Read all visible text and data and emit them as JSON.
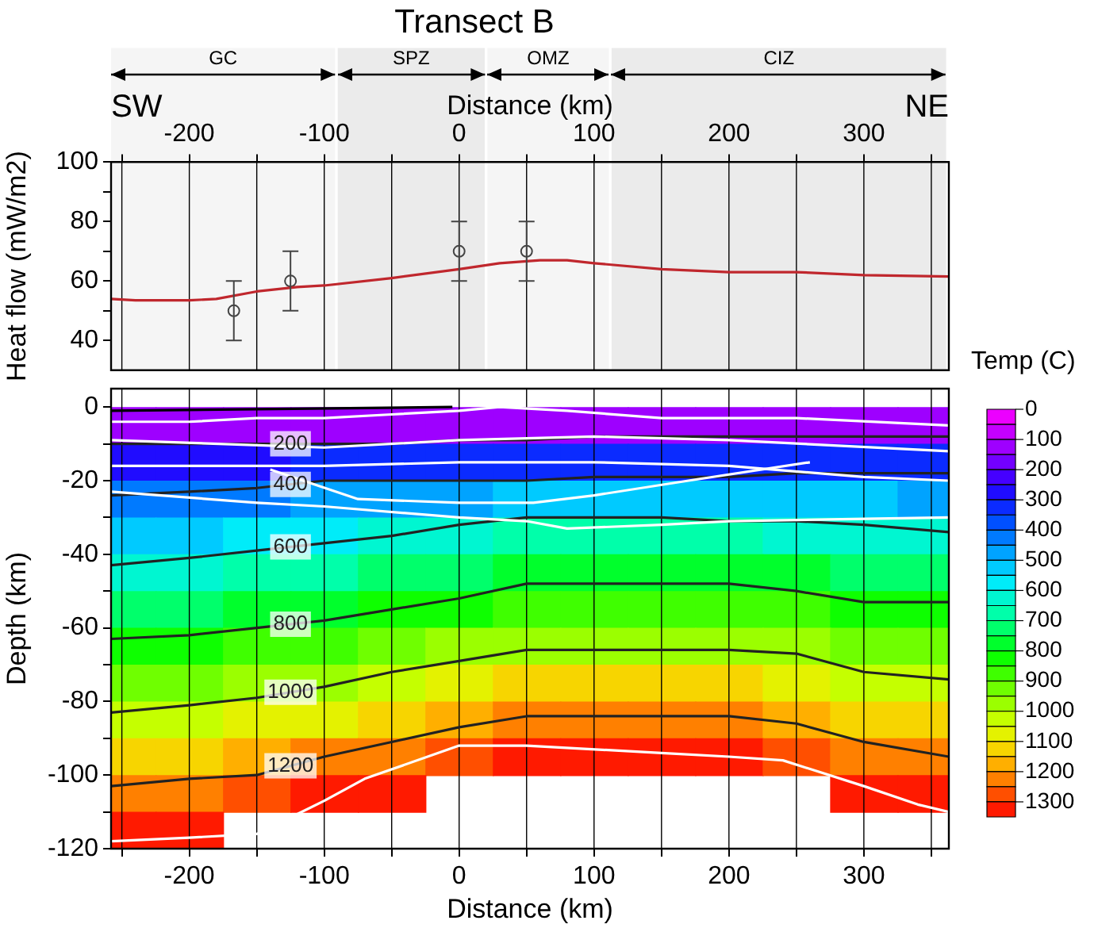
{
  "chart_data": [
    {
      "type": "line",
      "title": "Transect B",
      "xlabel": "Distance (km)",
      "ylabel": "Heat flow (mW/m2)",
      "xlim": [
        -258,
        363
      ],
      "xticks": [
        {
          "value": -250,
          "label": null
        },
        -200,
        {
          "value": -150,
          "label": null
        },
        -100,
        {
          "value": -50,
          "label": null
        },
        0,
        {
          "value": 50,
          "label": null
        },
        100,
        {
          "value": 150,
          "label": null
        },
        200,
        {
          "value": 250,
          "label": null
        },
        300,
        {
          "value": 350,
          "label": null
        }
      ],
      "ylim": [
        30,
        100
      ],
      "yticks": [
        40,
        {
          "value": 50,
          "label": null
        },
        60,
        {
          "value": 70,
          "label": null
        },
        80,
        {
          "value": 90,
          "label": null
        },
        100
      ],
      "grid": "x",
      "legend": false,
      "annotations": [
        "SW",
        "NE"
      ],
      "bands": [
        {
          "axis": "x",
          "from": -258,
          "to": -92,
          "label": "GC",
          "color": "#f5f5f5"
        },
        {
          "axis": "x",
          "from": -90,
          "to": 19,
          "label": "SPZ",
          "color": "#ebebeb"
        },
        {
          "axis": "x",
          "from": 21,
          "to": 111,
          "label": "OMZ",
          "color": "#f5f5f5"
        },
        {
          "axis": "x",
          "from": 113,
          "to": 361,
          "label": "CIZ",
          "color": "#ebebeb"
        }
      ],
      "series": [
        {
          "type": "line",
          "color": "#c0272d",
          "x": [
            -258,
            -240,
            -200,
            -180,
            -150,
            -120,
            -100,
            -50,
            0,
            30,
            60,
            80,
            100,
            150,
            200,
            250,
            300,
            363
          ],
          "values": [
            54,
            53.5,
            53.5,
            54,
            56.5,
            58,
            58.5,
            61,
            64,
            66,
            67,
            67,
            66,
            64,
            63,
            63,
            62,
            61.5
          ]
        },
        {
          "type": "scatter",
          "color": "#444444",
          "marker": "circle",
          "x": [
            -167,
            -125,
            0,
            50
          ],
          "values": [
            50,
            60,
            70,
            70
          ],
          "errors": [
            10,
            10,
            10,
            10
          ]
        }
      ]
    },
    {
      "type": "heatmap",
      "xlabel": "Distance (km)",
      "ylabel": "Depth (km)",
      "xlim": [
        -258,
        363
      ],
      "xticks": [
        {
          "value": -250,
          "label": null
        },
        -200,
        {
          "value": -150,
          "label": null
        },
        -100,
        {
          "value": -50,
          "label": null
        },
        0,
        {
          "value": 50,
          "label": null
        },
        100,
        {
          "value": 150,
          "label": null
        },
        200,
        {
          "value": 250,
          "label": null
        },
        300,
        {
          "value": 350,
          "label": null
        }
      ],
      "ylim": [
        -120,
        5
      ],
      "yticks": [
        -120,
        {
          "value": -110,
          "label": null
        },
        -100,
        {
          "value": -90,
          "label": null
        },
        -80,
        {
          "value": -70,
          "label": null
        },
        -60,
        {
          "value": -50,
          "label": null
        },
        -40,
        {
          "value": -30,
          "label": null
        },
        -20,
        {
          "value": -10,
          "label": null
        },
        0
      ],
      "grid": "x",
      "legend": false,
      "clabel": "Temp (C)",
      "clim": [
        0,
        1350
      ],
      "cticks": [
        0,
        100,
        200,
        300,
        400,
        500,
        600,
        700,
        800,
        900,
        1000,
        1100,
        1200,
        1300
      ],
      "x": [
        -250,
        -200,
        -150,
        -100,
        -50,
        0,
        50,
        100,
        150,
        200,
        250,
        300,
        350
      ],
      "y": [
        -5,
        -15,
        -25,
        -35,
        -45,
        -55,
        -65,
        -75,
        -85,
        -95,
        -105,
        -115
      ],
      "cells": [
        [
          100,
          100,
          100,
          100,
          100,
          110,
          110,
          130,
          130,
          130,
          130,
          130,
          130
        ],
        [
          270,
          280,
          280,
          300,
          300,
          310,
          310,
          330,
          330,
          330,
          340,
          340,
          340
        ],
        [
          410,
          420,
          440,
          460,
          470,
          480,
          500,
          510,
          510,
          500,
          510,
          500,
          490
        ],
        [
          520,
          530,
          550,
          580,
          600,
          630,
          660,
          660,
          660,
          650,
          640,
          630,
          610
        ],
        [
          620,
          640,
          660,
          680,
          700,
          730,
          770,
          770,
          770,
          760,
          750,
          720,
          720
        ],
        [
          720,
          730,
          750,
          770,
          800,
          840,
          880,
          880,
          880,
          880,
          860,
          820,
          820
        ],
        [
          820,
          830,
          850,
          880,
          920,
          950,
          990,
          990,
          990,
          990,
          980,
          930,
          910
        ],
        [
          920,
          940,
          960,
          990,
          1030,
          1070,
          1100,
          1100,
          1100,
          1100,
          1080,
          1030,
          1010
        ],
        [
          1020,
          1040,
          1060,
          1090,
          1140,
          1180,
          1210,
          1210,
          1210,
          1210,
          1190,
          1140,
          1100
        ],
        [
          1120,
          1140,
          1150,
          1200,
          1240,
          1280,
          1310,
          1310,
          1310,
          1310,
          1290,
          1240,
          1200
        ],
        [
          1220,
          1240,
          1250,
          1300,
          1340,
          null,
          null,
          null,
          null,
          null,
          null,
          1340,
          1300
        ],
        [
          1320,
          1340,
          null,
          null,
          null,
          null,
          null,
          null,
          null,
          null,
          null,
          null,
          null
        ]
      ],
      "series": [
        {
          "type": "line",
          "color": "#ffffff",
          "x": [
            -258,
            -200,
            -150,
            -100,
            -50,
            0,
            30,
            80,
            150,
            250,
            363
          ],
          "values": [
            -4,
            -4,
            -3,
            -3,
            -2,
            -1,
            0,
            -1,
            -3,
            -3,
            -5
          ]
        },
        {
          "type": "line",
          "color": "#ffffff",
          "x": [
            -258,
            -100,
            0,
            100,
            200,
            363
          ],
          "values": [
            -9,
            -11,
            -9,
            -8,
            -9,
            -12
          ]
        },
        {
          "type": "line",
          "color": "#ffffff",
          "x": [
            -258,
            -100,
            0,
            100,
            200,
            300,
            363
          ],
          "values": [
            -16,
            -16,
            -15,
            -15,
            -16,
            -19,
            -20
          ]
        },
        {
          "type": "line",
          "color": "#ffffff",
          "x": [
            -140,
            -75,
            0,
            55,
            100,
            170,
            260
          ],
          "values": [
            -17,
            -25,
            -26,
            -26,
            -24,
            -20,
            -15
          ]
        },
        {
          "type": "line",
          "color": "#ffffff",
          "x": [
            -258,
            -150,
            -100,
            0,
            50,
            80,
            150,
            200,
            363
          ],
          "values": [
            -23,
            -26,
            -27,
            -30,
            -31,
            -33,
            -32,
            -31,
            -30
          ]
        },
        {
          "type": "line",
          "color": "#ffffff",
          "x": [
            -258,
            -200,
            -150,
            -100,
            -70,
            0,
            50,
            150,
            200,
            240,
            300,
            340,
            363
          ],
          "values": [
            -118,
            -117,
            -116,
            -107,
            -101,
            -92,
            -92,
            -94,
            -95,
            -96,
            -103,
            -108,
            -110
          ]
        },
        {
          "type": "line",
          "color": "#000000",
          "x": [
            -258,
            -5
          ],
          "values": [
            -1,
            0
          ]
        },
        {
          "type": "line",
          "name": "200",
          "color": "#222222",
          "x": [
            -258,
            -200,
            -150,
            -100,
            -50,
            0,
            50,
            100,
            150,
            200,
            250,
            300,
            363
          ],
          "values": [
            -10,
            -10,
            -10,
            -10,
            -10,
            -9,
            -9,
            -8,
            -8,
            -8,
            -8,
            -8,
            -8
          ]
        },
        {
          "type": "line",
          "name": "400",
          "color": "#222222",
          "x": [
            -258,
            -200,
            -150,
            -100,
            -50,
            0,
            50,
            100,
            150,
            200,
            250,
            300,
            363
          ],
          "values": [
            -24,
            -23,
            -22,
            -20,
            -20,
            -20,
            -20,
            -19,
            -19,
            -19,
            -18,
            -18,
            -18
          ]
        },
        {
          "type": "line",
          "name": "600",
          "color": "#222222",
          "x": [
            -258,
            -200,
            -150,
            -100,
            -50,
            0,
            50,
            100,
            150,
            200,
            250,
            300,
            363
          ],
          "values": [
            -43,
            -41,
            -39,
            -37,
            -35,
            -32,
            -30,
            -30,
            -30,
            -31,
            -31,
            -32,
            -34
          ]
        },
        {
          "type": "line",
          "name": "800",
          "color": "#222222",
          "x": [
            -258,
            -200,
            -150,
            -100,
            -50,
            0,
            50,
            100,
            150,
            200,
            250,
            300,
            363
          ],
          "values": [
            -63,
            -62,
            -60,
            -58,
            -55,
            -52,
            -48,
            -48,
            -48,
            -48,
            -50,
            -53,
            -53
          ]
        },
        {
          "type": "line",
          "name": "1000",
          "color": "#222222",
          "x": [
            -258,
            -200,
            -150,
            -100,
            -50,
            0,
            50,
            100,
            150,
            200,
            250,
            300,
            363
          ],
          "values": [
            -83,
            -81,
            -79,
            -76,
            -72,
            -69,
            -66,
            -66,
            -66,
            -66,
            -67,
            -72,
            -74
          ]
        },
        {
          "type": "line",
          "name": "1200",
          "color": "#222222",
          "x": [
            -258,
            -200,
            -150,
            -100,
            -50,
            0,
            50,
            100,
            150,
            200,
            250,
            300,
            363
          ],
          "values": [
            -103,
            -101,
            -100,
            -95,
            -91,
            -87,
            -84,
            -84,
            -84,
            -84,
            -86,
            -91,
            -95
          ]
        }
      ]
    }
  ]
}
